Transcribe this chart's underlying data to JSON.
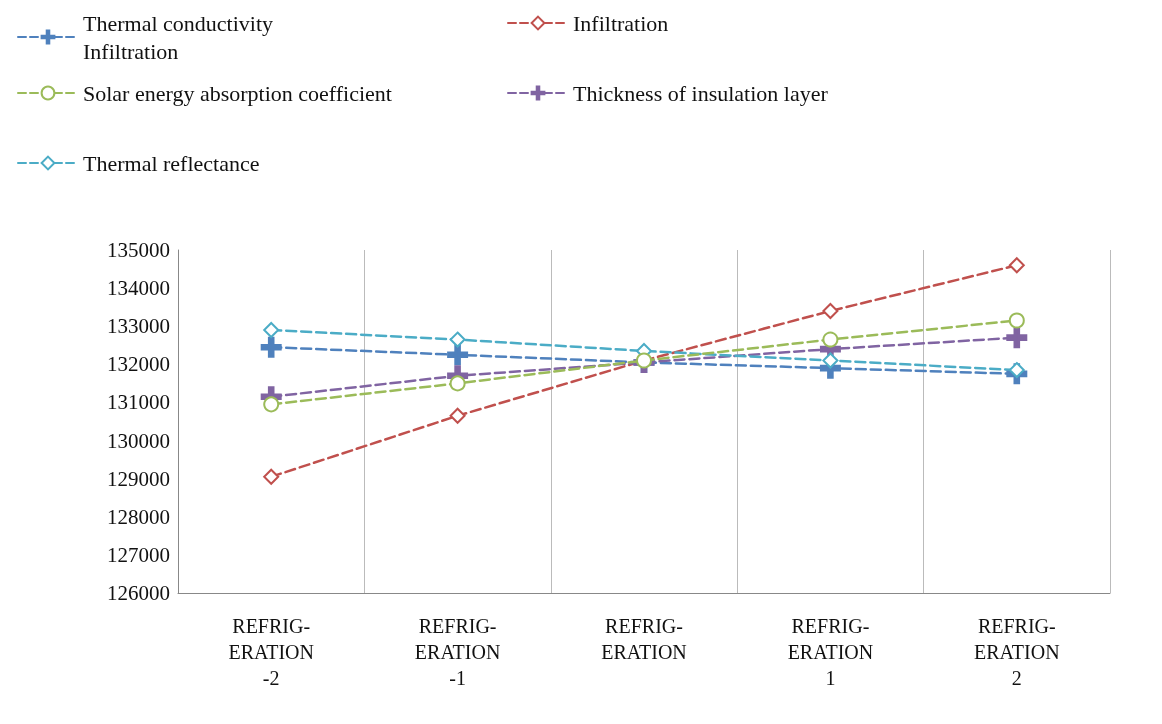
{
  "chart_data": {
    "type": "line",
    "categories": [
      "REFRIG-\nERATION\n-2",
      "REFRIG-\nERATION\n-1",
      "REFRIG-\nERATION",
      "REFRIG-\nERATION\n1",
      "REFRIG-\nERATION\n2"
    ],
    "series": [
      {
        "name": "Thermal conductivity\nInfiltration",
        "color": "#4f81bd",
        "marker": "cross",
        "values": [
          132450,
          132250,
          132050,
          131900,
          131750
        ]
      },
      {
        "name": "Infiltration",
        "color": "#c0504d",
        "marker": "diamond",
        "values": [
          129050,
          130650,
          132100,
          133400,
          134600
        ]
      },
      {
        "name": "Solar energy absorption coefficient",
        "color": "#9bbb59",
        "marker": "circle",
        "values": [
          130950,
          131500,
          132100,
          132650,
          133150
        ]
      },
      {
        "name": "Thickness of insulation layer",
        "color": "#8064a2",
        "marker": "cross",
        "values": [
          131150,
          131700,
          132050,
          132400,
          132700
        ]
      },
      {
        "name": "Thermal reflectance",
        "color": "#4bacc6",
        "marker": "diamond",
        "values": [
          132900,
          132650,
          132350,
          132100,
          131850
        ]
      }
    ],
    "ylim": [
      126000,
      135000
    ],
    "yticks": [
      126000,
      127000,
      128000,
      129000,
      130000,
      131000,
      132000,
      133000,
      134000,
      135000
    ],
    "grid": "x",
    "legend": "top left",
    "line_style": "dashed"
  }
}
